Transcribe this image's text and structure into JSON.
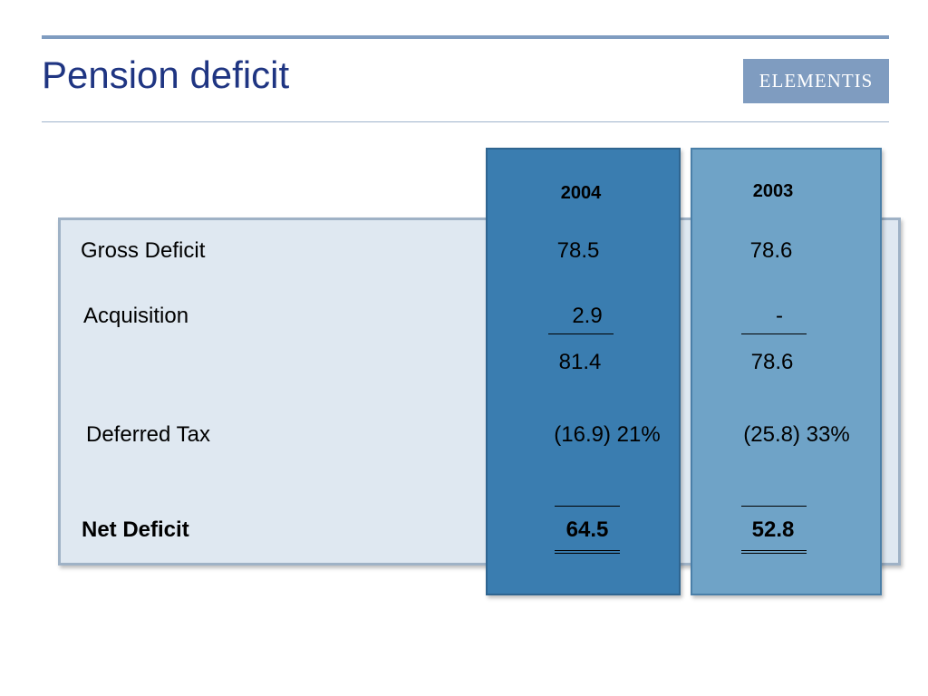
{
  "header": {
    "title": "Pension deficit",
    "logo_text": "ELEMENTIS"
  },
  "table": {
    "columns": [
      "2004",
      "2003"
    ],
    "rows": [
      {
        "label": "Gross Deficit",
        "values": [
          "78.5",
          "78.6"
        ]
      },
      {
        "label": "Acquisition",
        "values": [
          "2.9",
          "-"
        ]
      },
      {
        "label": "",
        "values": [
          "81.4",
          "78.6"
        ]
      },
      {
        "label": "Deferred Tax",
        "values": [
          "(16.9) 21%",
          "(25.8) 33%"
        ]
      },
      {
        "label": "Net Deficit",
        "values": [
          "64.5",
          "52.8"
        ]
      }
    ]
  },
  "colors": {
    "title": "#1f3582",
    "rule": "#7f9cc0",
    "panel": "#dfe8f1",
    "column_2004": "#3a7db0",
    "column_2003": "#6fa3c7"
  }
}
